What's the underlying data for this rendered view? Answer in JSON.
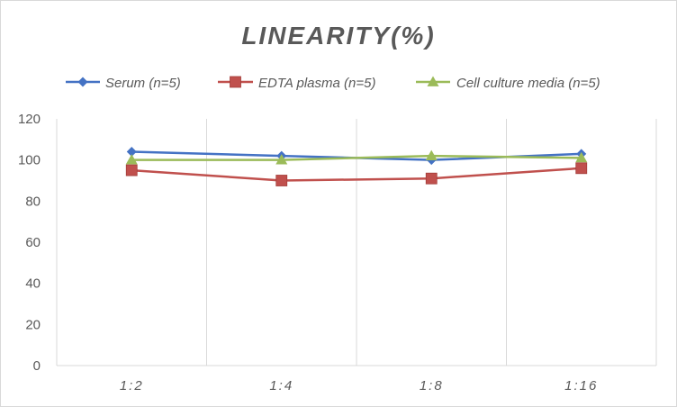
{
  "chart_data": {
    "type": "line",
    "title": "LINEARITY(%)",
    "xlabel": "",
    "ylabel": "",
    "categories": [
      "1:2",
      "1:4",
      "1:8",
      "1:16"
    ],
    "ylim": [
      0,
      120
    ],
    "yticks": [
      0,
      20,
      40,
      60,
      80,
      100,
      120
    ],
    "grid": "vertical",
    "legend_position": "top",
    "series": [
      {
        "name": "Serum (n=5)",
        "values": [
          104,
          102,
          100,
          103
        ],
        "color": "#4472c4",
        "marker": "diamond"
      },
      {
        "name": "EDTA plasma (n=5)",
        "values": [
          95,
          90,
          91,
          96
        ],
        "color": "#c0504d",
        "marker": "square"
      },
      {
        "name": "Cell culture media (n=5)",
        "values": [
          100,
          100,
          102,
          101
        ],
        "color": "#9bbb59",
        "marker": "triangle"
      }
    ]
  }
}
